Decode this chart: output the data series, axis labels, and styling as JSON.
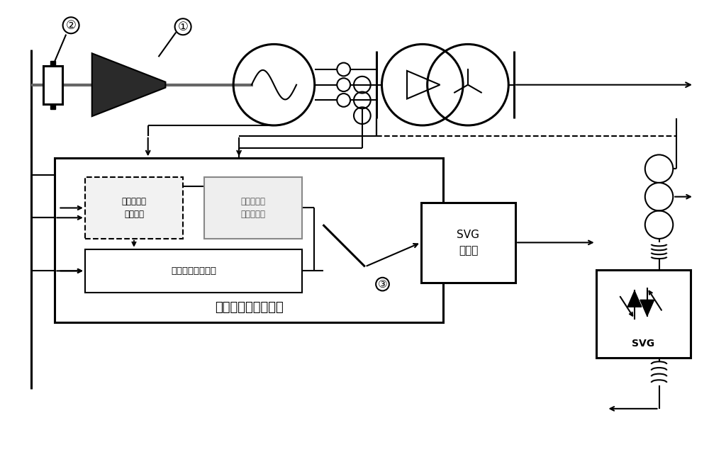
{
  "bg_color": "#ffffff",
  "lc": "#000000",
  "lw": 1.5,
  "lw_thick": 2.2,
  "figsize": [
    10.0,
    6.62
  ],
  "dpi": 100,
  "label1": "①",
  "label2": "②",
  "label3": "③",
  "box_main_label": "次同步阻尼控制装置",
  "box_phase_label": "移相参数自\n整定模块",
  "box_torsion_label": "扜振激励信\n号生成模块",
  "box_closed_label": "闭环抑制控制环节",
  "box_svg_ctrl_label": "SVG\n控制器",
  "svg_label": "SVG"
}
